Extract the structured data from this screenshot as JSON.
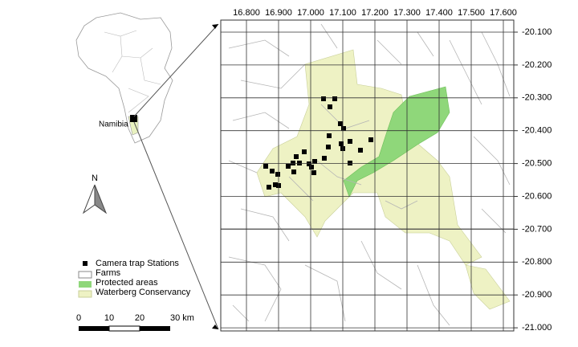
{
  "inset": {
    "label": "Namibia"
  },
  "north_arrow": {
    "label": "N"
  },
  "legend": {
    "items": [
      "Camera trap Stations",
      "Farms",
      "Protected areas",
      "Waterberg Conservancy"
    ]
  },
  "scale_bar": {
    "labels": [
      "0",
      "10",
      "20",
      "30 km"
    ]
  },
  "map": {
    "longitude_labels": [
      "16.800",
      "16.900",
      "17.000",
      "17.100",
      "17.200",
      "17.300",
      "17.400",
      "17.500",
      "17.600"
    ],
    "latitude_labels": [
      "-20.100",
      "-20.200",
      "-20.300",
      "-20.400",
      "-20.500",
      "-20.600",
      "-20.700",
      "-20.800",
      "-20.900",
      "-21.000"
    ]
  }
}
